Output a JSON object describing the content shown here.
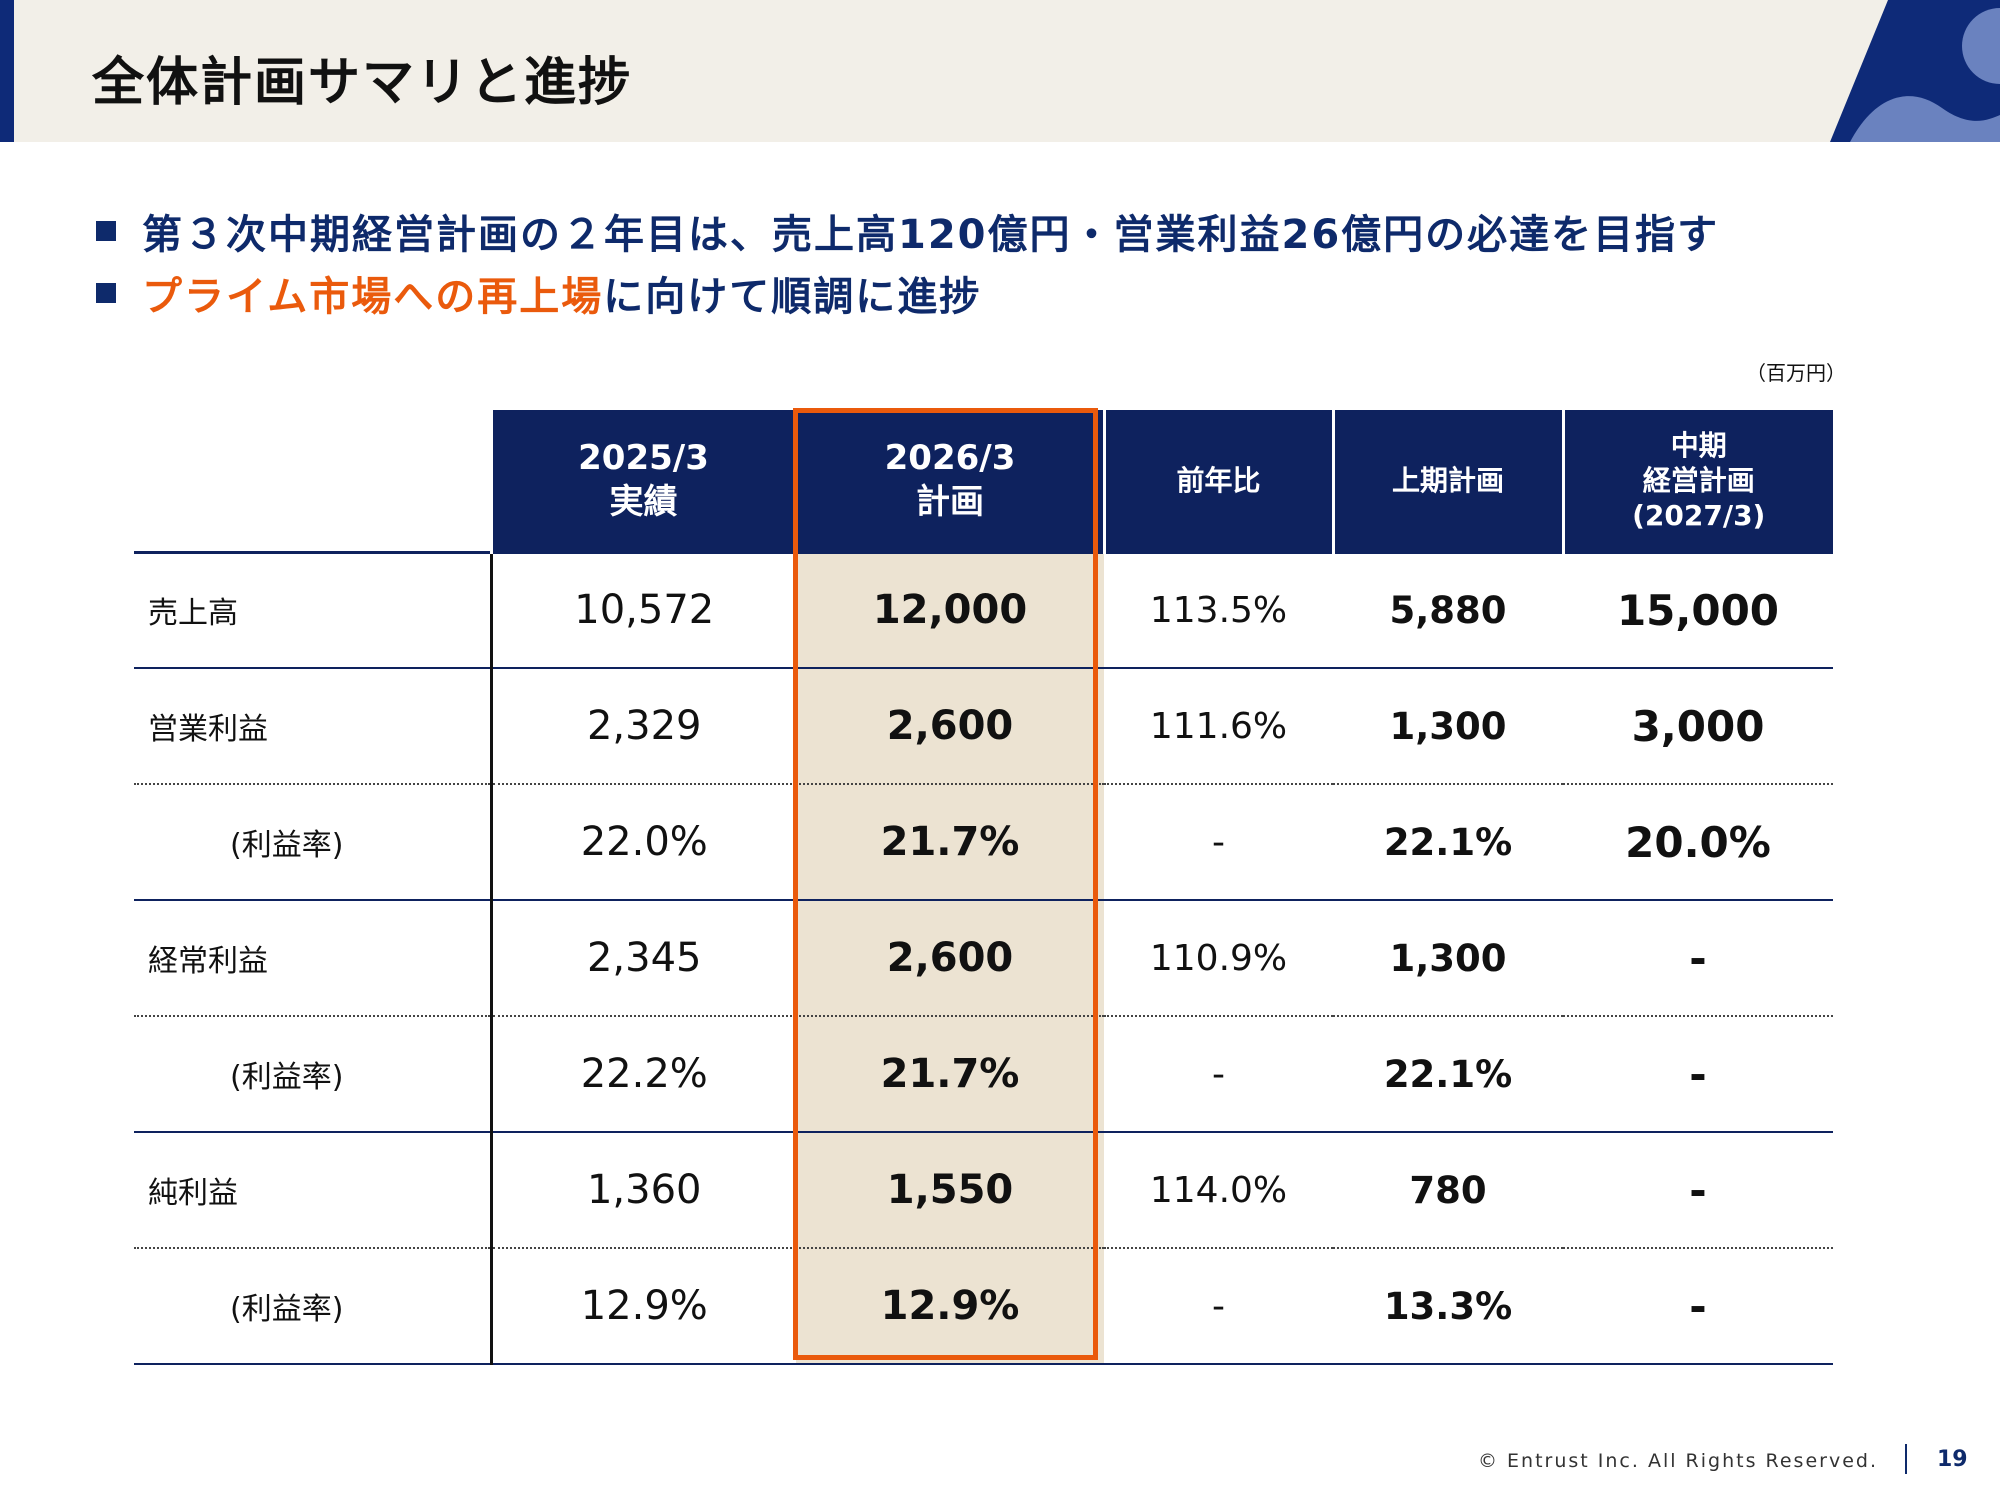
{
  "page_title": "全体計画サマリと進捗",
  "bullets": [
    {
      "text": "第３次中期経営計画の２年目は、売上高120億円・営業利益26億円の必達を目指す",
      "highlight": "",
      "rest": ""
    },
    {
      "text": "",
      "highlight": "プライム市場への再上場",
      "rest": "に向けて順調に進捗"
    }
  ],
  "unit_note": "（百万円）",
  "table": {
    "headers": {
      "actual_line1": "2025/3",
      "actual_line2": "実績",
      "plan_line1": "2026/3",
      "plan_line2": "計画",
      "yoy": "前年比",
      "h1": "上期計画",
      "mtp_line1": "中期",
      "mtp_line2": "経営計画",
      "mtp_line3": "(2027/3)"
    },
    "rows": [
      {
        "label": "売上高",
        "actual": "10,572",
        "plan": "12,000",
        "yoy": "113.5%",
        "h1": "5,880",
        "mtp": "15,000"
      },
      {
        "label": "営業利益",
        "actual": "2,329",
        "plan": "2,600",
        "yoy": "111.6%",
        "h1": "1,300",
        "mtp": "3,000"
      },
      {
        "label": "(利益率)",
        "actual": "22.0%",
        "plan": "21.7%",
        "yoy": "-",
        "h1": "22.1%",
        "mtp": "20.0%"
      },
      {
        "label": "経常利益",
        "actual": "2,345",
        "plan": "2,600",
        "yoy": "110.9%",
        "h1": "1,300",
        "mtp": "-"
      },
      {
        "label": "(利益率)",
        "actual": "22.2%",
        "plan": "21.7%",
        "yoy": "-",
        "h1": "22.1%",
        "mtp": "-"
      },
      {
        "label": "純利益",
        "actual": "1,360",
        "plan": "1,550",
        "yoy": "114.0%",
        "h1": "780",
        "mtp": "-"
      },
      {
        "label": "(利益率)",
        "actual": "12.9%",
        "plan": "12.9%",
        "yoy": "-",
        "h1": "13.3%",
        "mtp": "-"
      }
    ]
  },
  "footer": {
    "copyright": "© Entrust Inc. All Rights Reserved.",
    "page_number": "19"
  },
  "colors": {
    "navy": "#0e225e",
    "accent_orange": "#ea5a0c",
    "highlight_fill": "#ece3d2",
    "header_band": "#f2efe8"
  }
}
